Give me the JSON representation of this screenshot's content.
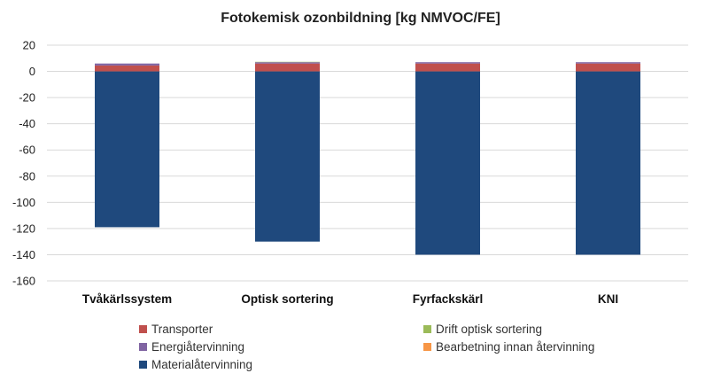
{
  "chart_data": {
    "type": "bar",
    "stacked": true,
    "title": "Fotokemisk ozonbildning [kg NMVOC/FE]",
    "xlabel": "",
    "ylabel": "",
    "categories": [
      "Tvåkärlssystem",
      "Optisk sortering",
      "Fyrfackskärl",
      "KNI"
    ],
    "ylim": [
      -160,
      20
    ],
    "yticks": [
      20,
      0,
      -20,
      -40,
      -60,
      -80,
      -100,
      -120,
      -140,
      -160
    ],
    "grid": true,
    "legend_position": "bottom",
    "series": [
      {
        "name": "Materialåtervinning",
        "color": "#1f497d",
        "values": [
          -119,
          -130,
          -140,
          -140
        ]
      },
      {
        "name": "Transporter",
        "color": "#c0504d",
        "values": [
          4.5,
          6,
          6,
          6
        ]
      },
      {
        "name": "Energiåtervinning",
        "color": "#8064a2",
        "values": [
          1.5,
          1,
          1,
          1
        ]
      },
      {
        "name": "Drift optisk sortering",
        "color": "#9bbb59",
        "values": [
          0,
          0.3,
          0,
          0
        ]
      },
      {
        "name": "Bearbetning innan återvinning",
        "color": "#f79646",
        "values": [
          0,
          0,
          0,
          0
        ]
      }
    ],
    "legend_order": [
      "Transporter",
      "Drift optisk sortering",
      "Energiåtervinning",
      "Bearbetning innan återvinning",
      "Materialåtervinning"
    ]
  }
}
